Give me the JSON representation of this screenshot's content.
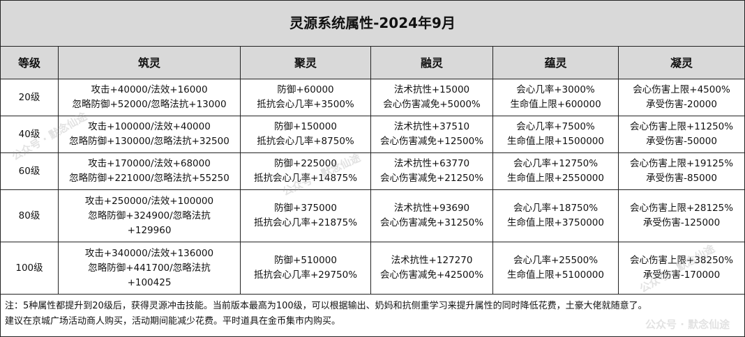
{
  "title": "灵源系统属性-2024年9月",
  "headers": [
    "等级",
    "筑灵",
    "聚灵",
    "融灵",
    "蕴灵",
    "凝灵"
  ],
  "rows": [
    {
      "level": "20级",
      "cells": [
        [
          "攻击+40000/法效+16000",
          "忽略防御+52000/忽略法抗+13000"
        ],
        [
          "防御+60000",
          "抵抗会心几率+3500%"
        ],
        [
          "法术抗性+15000",
          "会心伤害减免+5000%"
        ],
        [
          "会心几率+3000%",
          "生命值上限+600000"
        ],
        [
          "会心伤害上限+4500%",
          "承受伤害-20000"
        ]
      ]
    },
    {
      "level": "40级",
      "cells": [
        [
          "攻击+100000/法效+40000",
          "忽略防御+130000/忽略法抗+32500"
        ],
        [
          "防御+150000",
          "抵抗会心几率+8750%"
        ],
        [
          "法术抗性+37510",
          "会心伤害减免+12500%"
        ],
        [
          "会心几率+7500%",
          "生命值上限+1500000"
        ],
        [
          "会心伤害上限+11250%",
          "承受伤害-50000"
        ]
      ]
    },
    {
      "level": "60级",
      "cells": [
        [
          "攻击+170000/法效+68000",
          "忽略防御+221000/忽略法抗+55250"
        ],
        [
          "防御+225000",
          "抵抗会心几率+14875%"
        ],
        [
          "法术抗性+63770",
          "会心伤害减免+21250%"
        ],
        [
          "会心几率+12750%",
          "生命值上限+2550000"
        ],
        [
          "会心伤害上限+19125%",
          "承受伤害-85000"
        ]
      ]
    },
    {
      "level": "80级",
      "cells": [
        [
          "攻击+250000/法效+100000",
          "忽略防御+324900/忽略法抗",
          "+129960"
        ],
        [
          "防御+375000",
          "抵抗会心几率+21875%"
        ],
        [
          "法术抗性+93690",
          "会心伤害减免+31250%"
        ],
        [
          "会心几率+18750%",
          "生命值上限+3750000"
        ],
        [
          "会心伤害上限+28125%",
          "承受伤害-125000"
        ]
      ]
    },
    {
      "level": "100级",
      "cells": [
        [
          "攻击+340000/法效+136000",
          "忽略防御+441700/忽略法抗",
          "+100425"
        ],
        [
          "防御+510000",
          "抵抗会心几率+29750%"
        ],
        [
          "法术抗性+127270",
          "会心伤害减免+42500%"
        ],
        [
          "会心几率+25500%",
          "生命值上限+5100000"
        ],
        [
          "会心伤害上限+38250%",
          "承受伤害-170000"
        ]
      ]
    }
  ],
  "note": [
    "注：5种属性都提升到20级后，获得灵源冲击技能。当前版本最高为100级，可以根据输出、奶妈和抗侧重学习来提升属性的同时降低花费，土豪大佬就随意了。",
    "建议在京城广场活动商人购买，活动期间能减少花费。平时道具在金币集市内购买。"
  ],
  "watermark": "公众号 · 默念仙途"
}
